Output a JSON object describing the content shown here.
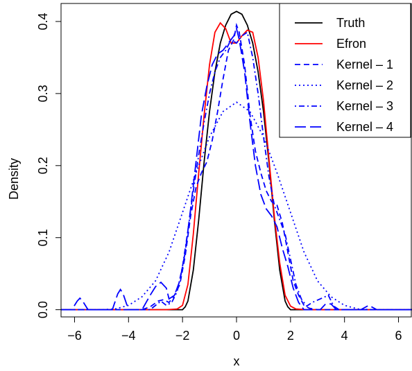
{
  "chart_data": {
    "type": "line",
    "title": "",
    "xlabel": "x",
    "ylabel": "Density",
    "xlim": [
      -6.5,
      6.5
    ],
    "ylim": [
      -0.01,
      0.425
    ],
    "xticks": [
      -6,
      -4,
      -2,
      0,
      2,
      4,
      6
    ],
    "xtick_labels": [
      "−6",
      "−4",
      "−2",
      "0",
      "2",
      "4",
      "6"
    ],
    "yticks": [
      0.0,
      0.1,
      0.2,
      0.3,
      0.4
    ],
    "ytick_labels": [
      "0.0",
      "0.1",
      "0.2",
      "0.3",
      "0.4"
    ],
    "grid": false,
    "legend_position": "top-right",
    "series": [
      {
        "name": "Truth",
        "color": "#000000",
        "dash": "solid",
        "x": [
          -6.5,
          -2.0,
          -1.9,
          -1.8,
          -1.6,
          -1.4,
          -1.2,
          -1.0,
          -0.8,
          -0.6,
          -0.4,
          -0.2,
          0.0,
          0.2,
          0.4,
          0.6,
          0.8,
          1.0,
          1.2,
          1.4,
          1.6,
          1.8,
          1.9,
          2.0,
          6.5
        ],
        "y": [
          0,
          0,
          0.004,
          0.012,
          0.055,
          0.125,
          0.205,
          0.275,
          0.33,
          0.37,
          0.395,
          0.41,
          0.414,
          0.41,
          0.395,
          0.37,
          0.33,
          0.275,
          0.205,
          0.125,
          0.055,
          0.012,
          0.004,
          0,
          0
        ]
      },
      {
        "name": "Efron",
        "color": "#ff0000",
        "dash": "solid",
        "x": [
          -6.5,
          -2.6,
          -2.2,
          -2.0,
          -1.8,
          -1.6,
          -1.4,
          -1.2,
          -1.0,
          -0.8,
          -0.6,
          -0.4,
          -0.2,
          0.0,
          0.2,
          0.4,
          0.6,
          0.8,
          1.0,
          1.2,
          1.4,
          1.6,
          1.8,
          2.0,
          2.2,
          2.6,
          6.5
        ],
        "y": [
          0,
          0,
          0.001,
          0.006,
          0.035,
          0.105,
          0.19,
          0.27,
          0.34,
          0.385,
          0.398,
          0.39,
          0.37,
          0.37,
          0.38,
          0.388,
          0.385,
          0.35,
          0.29,
          0.21,
          0.13,
          0.065,
          0.02,
          0.005,
          0.001,
          0,
          0
        ]
      },
      {
        "name": "Kernel – 1",
        "color": "#0000ff",
        "dash": "dashed",
        "x": [
          -6.5,
          -3.5,
          -3.2,
          -2.9,
          -2.7,
          -2.5,
          -2.3,
          -2.1,
          -1.9,
          -1.7,
          -1.5,
          -1.3,
          -1.1,
          -0.9,
          -0.7,
          -0.5,
          -0.3,
          -0.1,
          0.0,
          0.1,
          0.3,
          0.5,
          0.7,
          0.9,
          1.1,
          1.3,
          1.5,
          1.7,
          1.9,
          2.1,
          2.3,
          2.5,
          2.7,
          3.0,
          6.5
        ],
        "y": [
          0,
          0,
          0.004,
          0.012,
          0.014,
          0.01,
          0.02,
          0.035,
          0.075,
          0.13,
          0.17,
          0.19,
          0.205,
          0.235,
          0.275,
          0.32,
          0.36,
          0.375,
          0.395,
          0.385,
          0.34,
          0.27,
          0.22,
          0.19,
          0.165,
          0.15,
          0.145,
          0.12,
          0.08,
          0.04,
          0.02,
          0.006,
          0.002,
          0,
          0
        ]
      },
      {
        "name": "Kernel – 2",
        "color": "#0000ff",
        "dash": "dotted",
        "x": [
          -6.5,
          -5.0,
          -4.5,
          -4.0,
          -3.5,
          -3.0,
          -2.5,
          -2.0,
          -1.5,
          -1.0,
          -0.5,
          0.0,
          0.5,
          1.0,
          1.5,
          2.0,
          2.5,
          3.0,
          3.5,
          4.0,
          4.5,
          5.0,
          6.5
        ],
        "y": [
          0,
          0,
          0.001,
          0.006,
          0.018,
          0.04,
          0.08,
          0.135,
          0.19,
          0.24,
          0.275,
          0.288,
          0.275,
          0.24,
          0.19,
          0.135,
          0.08,
          0.04,
          0.018,
          0.006,
          0.001,
          0,
          0
        ]
      },
      {
        "name": "Kernel – 3",
        "color": "#0000ff",
        "dash": "dashdot",
        "x": [
          -6.5,
          -3.2,
          -3.0,
          -2.8,
          -2.6,
          -2.4,
          -2.2,
          -2.0,
          -1.8,
          -1.6,
          -1.4,
          -1.2,
          -1.0,
          -0.8,
          -0.6,
          -0.4,
          -0.2,
          0.0,
          0.2,
          0.4,
          0.6,
          0.8,
          1.0,
          1.2,
          1.4,
          1.6,
          1.8,
          2.0,
          2.2,
          2.4,
          2.6,
          2.8,
          3.1,
          3.4,
          3.6,
          3.8,
          6.5
        ],
        "y": [
          0,
          0,
          0.006,
          0.012,
          0.006,
          0.01,
          0.025,
          0.06,
          0.11,
          0.165,
          0.215,
          0.26,
          0.3,
          0.33,
          0.35,
          0.36,
          0.375,
          0.37,
          0.38,
          0.385,
          0.35,
          0.3,
          0.24,
          0.185,
          0.145,
          0.125,
          0.105,
          0.07,
          0.035,
          0.015,
          0.005,
          0.01,
          0.015,
          0.02,
          0.005,
          0,
          0
        ]
      },
      {
        "name": "Kernel – 4",
        "color": "#0000ff",
        "dash": "longdash",
        "x": [
          -6.5,
          -6.1,
          -5.9,
          -5.8,
          -5.7,
          -5.5,
          -4.6,
          -4.4,
          -4.3,
          -4.2,
          -4.0,
          -3.5,
          -3.2,
          -3.0,
          -2.8,
          -2.6,
          -2.5,
          -2.3,
          -2.1,
          -1.9,
          -1.7,
          -1.5,
          -1.3,
          -1.1,
          -0.9,
          -0.7,
          -0.5,
          -0.3,
          -0.1,
          0.0,
          0.1,
          0.3,
          0.5,
          0.7,
          0.9,
          1.1,
          1.3,
          1.5,
          1.7,
          1.9,
          2.1,
          2.3,
          2.5,
          3.1,
          3.3,
          3.5,
          3.7,
          4.6,
          4.9,
          5.2,
          6.5
        ],
        "y": [
          0,
          0,
          0.012,
          0.016,
          0.012,
          0,
          0,
          0.022,
          0.028,
          0.022,
          0,
          0,
          0.02,
          0.032,
          0.038,
          0.03,
          0.015,
          0.02,
          0.04,
          0.08,
          0.14,
          0.205,
          0.27,
          0.31,
          0.34,
          0.355,
          0.36,
          0.37,
          0.38,
          0.39,
          0.375,
          0.33,
          0.26,
          0.2,
          0.16,
          0.14,
          0.13,
          0.115,
          0.085,
          0.06,
          0.03,
          0.01,
          0,
          0,
          0.008,
          0.008,
          0,
          0,
          0.006,
          0,
          0
        ]
      }
    ]
  }
}
